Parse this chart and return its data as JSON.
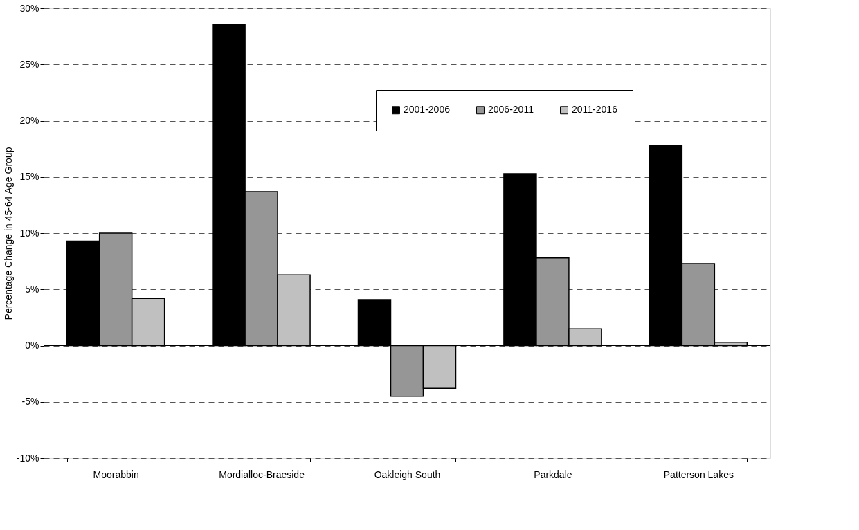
{
  "chart_data": {
    "type": "bar",
    "ylabel": "Percentage Change in 45-64 Age Group",
    "categories": [
      "Moorabbin",
      "Mordialloc-Braeside",
      "Oakleigh South",
      "Parkdale",
      "Patterson Lakes"
    ],
    "series": [
      {
        "name": "2001-2006",
        "color": "#000000",
        "values": [
          9.3,
          28.6,
          4.1,
          15.3,
          17.8
        ]
      },
      {
        "name": "2006-2011",
        "color": "#969696",
        "values": [
          10.0,
          13.7,
          -4.5,
          7.8,
          7.3
        ]
      },
      {
        "name": "2011-2016",
        "color": "#c0c0c0",
        "values": [
          4.2,
          6.3,
          -3.8,
          1.5,
          0.3
        ]
      }
    ],
    "ylim": [
      -10,
      30
    ],
    "yticks": [
      {
        "value": -10,
        "label": "-10%"
      },
      {
        "value": -5,
        "label": "-5%"
      },
      {
        "value": 0,
        "label": "0%"
      },
      {
        "value": 5,
        "label": "5%"
      },
      {
        "value": 10,
        "label": "10%"
      },
      {
        "value": 15,
        "label": "15%"
      },
      {
        "value": 20,
        "label": "20%"
      },
      {
        "value": 25,
        "label": "25%"
      },
      {
        "value": 30,
        "label": "30%"
      }
    ],
    "grid": "y",
    "legend": "top"
  }
}
